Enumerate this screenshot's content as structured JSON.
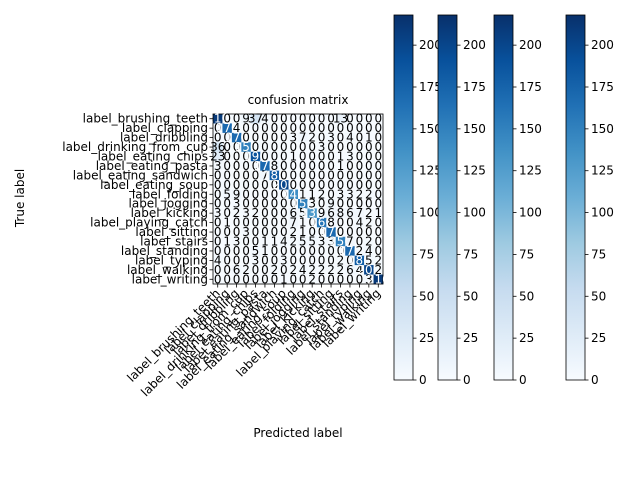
{
  "chart_data": {
    "type": "heatmap",
    "title": "confusion matrix",
    "xlabel": "Predicted label",
    "ylabel": "True label",
    "colormap": "Blues",
    "colormap_colors": [
      "#f7fbff",
      "#deebf7",
      "#c6dbef",
      "#9ecae1",
      "#6baed6",
      "#4292c6",
      "#2171b5",
      "#08519c",
      "#08306b"
    ],
    "vmin": 0,
    "vmax": 218,
    "colorbar_ticks": [
      0,
      25,
      50,
      75,
      100,
      125,
      150,
      175,
      200
    ],
    "colorbar_count": 4,
    "categories": [
      "label_brushing_teeth",
      "label_clapping",
      "label_dribbling",
      "label_drinking_from_cup",
      "label_eating_chips",
      "label_eating_pasta",
      "label_eating_sandwich",
      "label_eating_soup",
      "label_folding",
      "label_jogging",
      "label_kicking",
      "label_playing_catch",
      "label_sitting",
      "label_stairs",
      "label_standing",
      "label_typing",
      "label_walking",
      "label_writing"
    ],
    "matrix": [
      [
        210,
        0,
        0,
        9,
        37,
        4,
        0,
        0,
        0,
        0,
        0,
        0,
        0,
        13,
        0,
        0,
        0,
        0
      ],
      [
        0,
        170,
        4,
        0,
        0,
        0,
        0,
        0,
        0,
        0,
        0,
        0,
        0,
        0,
        0,
        0,
        0,
        0
      ],
      [
        0,
        0,
        170,
        0,
        0,
        0,
        0,
        0,
        3,
        7,
        2,
        0,
        3,
        0,
        4,
        0,
        1,
        0
      ],
      [
        36,
        0,
        0,
        150,
        0,
        0,
        0,
        0,
        0,
        0,
        0,
        3,
        0,
        0,
        0,
        0,
        0,
        0
      ],
      [
        23,
        0,
        0,
        0,
        190,
        0,
        0,
        0,
        1,
        0,
        0,
        0,
        0,
        1,
        3,
        0,
        0,
        0
      ],
      [
        3,
        0,
        0,
        0,
        0,
        170,
        8,
        0,
        0,
        0,
        0,
        0,
        0,
        1,
        0,
        0,
        0,
        0
      ],
      [
        0,
        0,
        0,
        0,
        0,
        7,
        180,
        0,
        0,
        0,
        0,
        0,
        0,
        0,
        0,
        0,
        0,
        0
      ],
      [
        0,
        0,
        0,
        0,
        0,
        0,
        0,
        200,
        0,
        0,
        0,
        0,
        0,
        0,
        0,
        0,
        0,
        0
      ],
      [
        0,
        5,
        9,
        0,
        0,
        0,
        0,
        0,
        140,
        1,
        1,
        2,
        0,
        3,
        3,
        2,
        2,
        0
      ],
      [
        0,
        0,
        3,
        0,
        0,
        0,
        0,
        0,
        0,
        150,
        3,
        0,
        9,
        0,
        0,
        0,
        0,
        0
      ],
      [
        3,
        0,
        2,
        3,
        2,
        0,
        0,
        0,
        6,
        5,
        130,
        9,
        6,
        8,
        6,
        7,
        2,
        1
      ],
      [
        0,
        1,
        0,
        0,
        0,
        0,
        0,
        0,
        7,
        1,
        0,
        160,
        8,
        0,
        0,
        4,
        2,
        0
      ],
      [
        0,
        0,
        0,
        3,
        0,
        0,
        0,
        0,
        2,
        1,
        0,
        0,
        170,
        0,
        0,
        0,
        0,
        0
      ],
      [
        0,
        1,
        3,
        0,
        0,
        1,
        1,
        4,
        2,
        5,
        5,
        3,
        3,
        150,
        7,
        0,
        2,
        0
      ],
      [
        0,
        0,
        0,
        0,
        5,
        1,
        0,
        0,
        0,
        0,
        0,
        0,
        0,
        0,
        170,
        2,
        4,
        0
      ],
      [
        4,
        0,
        0,
        0,
        3,
        0,
        0,
        3,
        0,
        0,
        0,
        0,
        0,
        2,
        0,
        180,
        5,
        2
      ],
      [
        0,
        0,
        6,
        2,
        0,
        0,
        2,
        0,
        2,
        4,
        2,
        2,
        2,
        2,
        6,
        4,
        200,
        2
      ],
      [
        0,
        0,
        0,
        0,
        0,
        0,
        0,
        1,
        0,
        0,
        2,
        0,
        0,
        0,
        0,
        0,
        3,
        210
      ]
    ]
  }
}
